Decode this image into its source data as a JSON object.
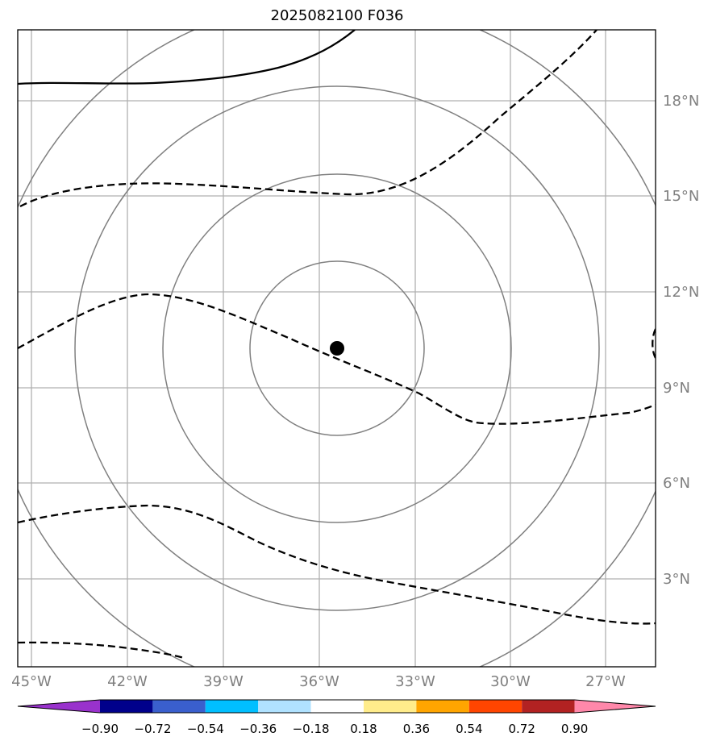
{
  "title": "2025082100 F036",
  "map": {
    "lon_labels": [
      "45°W",
      "42°W",
      "39°W",
      "36°W",
      "33°W",
      "30°W",
      "27°W"
    ],
    "lat_labels": [
      "18°N",
      "15°N",
      "12°N",
      "9°N",
      "6°N",
      "3°N"
    ],
    "gridline_color": "#b0b0b0",
    "range_ring_color": "#808080",
    "storm_center": {
      "lon": -35.4,
      "lat": 10.2
    }
  },
  "colorbar": {
    "ticks": [
      "−0.90",
      "−0.72",
      "−0.54",
      "−0.36",
      "−0.18",
      "0.18",
      "0.36",
      "0.54",
      "0.72",
      "0.90"
    ],
    "colors": [
      "#9932cc",
      "#00008b",
      "#3a5fcd",
      "#00bfff",
      "#b0e2ff",
      "#ffffff",
      "#ffec8b",
      "#ffa500",
      "#ff4500",
      "#b22222",
      "#ff88aa"
    ]
  }
}
